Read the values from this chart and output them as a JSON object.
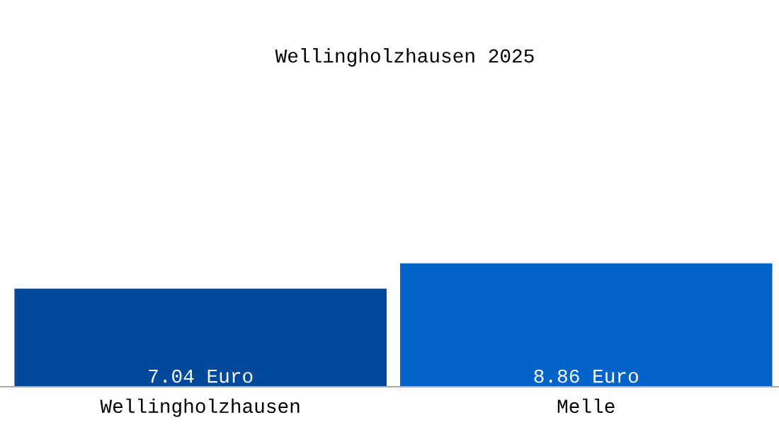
{
  "chart_data": {
    "type": "bar",
    "title": "Wellingholzhausen 2025",
    "categories": [
      "Wellingholzhausen",
      "Melle"
    ],
    "values": [
      7.04,
      8.86
    ],
    "colors": [
      "#02489b",
      "#0463c9"
    ],
    "value_labels": [
      "7.04 Euro",
      "8.86 Euro"
    ],
    "tick_labels": "x",
    "grid": false,
    "legend": false
  }
}
